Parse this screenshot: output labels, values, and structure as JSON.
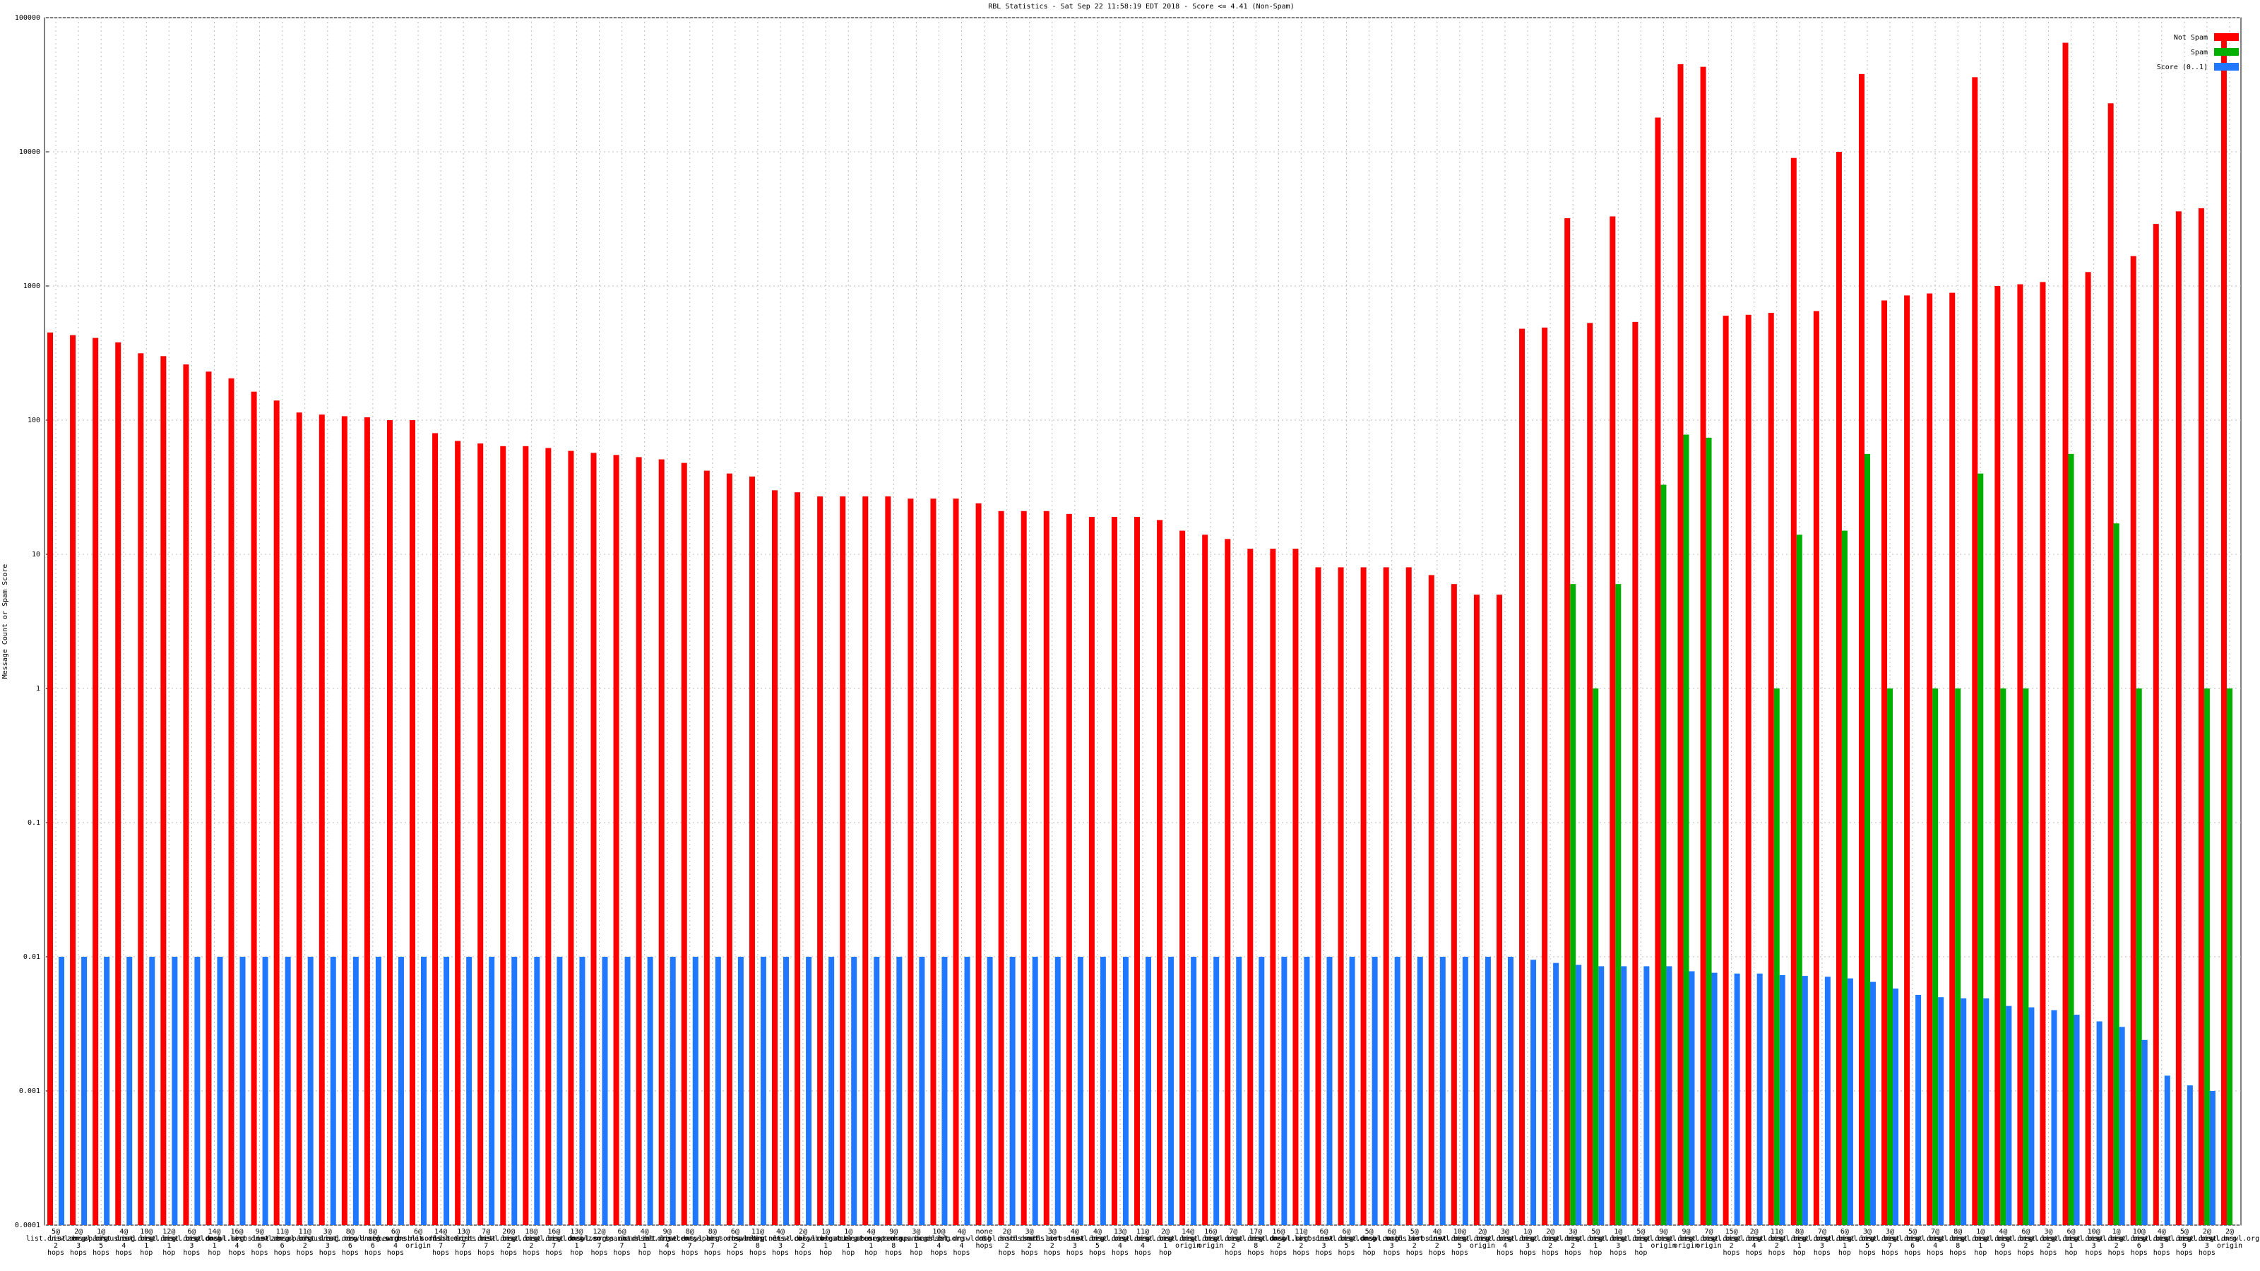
{
  "chart_data": {
    "type": "bar",
    "log_scale": true,
    "grid": true,
    "legend_position": "top-right",
    "title": "RBL Statistics - Sat Sep 22 11:58:19 EDT 2018 - Score <= 4.41 (Non-Spam)",
    "y_label": "Message Count or Spam Score",
    "ylim": [
      0.0001,
      100000
    ],
    "yticks": [
      0.0001,
      0.001,
      0.01,
      0.1,
      1,
      10,
      100,
      1000,
      10000,
      100000
    ],
    "categories": [
      "5@ list.dnswl.org 2 hops",
      "2@ list.dnswl.org 3 hops",
      "1@ zen.spamhaus.org 5 hops",
      "4@ list.dnswl.org 4 hops",
      "10@ list.dnswl.org 1 hop",
      "12@ list.dnswl.org 1 hop",
      "6@ list.dnswl.org 3 hops",
      "14@ list.dnswl.org 1 hop",
      "16@ dnsbl.sorbs.net 4 hops",
      "9@ list.dnswl.org 6 hops",
      "11@ list.dnswl.org 6 hops",
      "11@ zen.spamhaus.org 2 hops",
      "3@ list.dnswl.org 3 hops",
      "8@ list.dnswl.org 6 hops",
      "8@ ix.dnsbl.org 6 hops",
      "6@ zen.sorbs.net 4 hops",
      "6@ new.dnsbl.sorbs.net origin",
      "14@ ix.dnsbl.org 7 hops",
      "13@ list.sorbs.net 7 hops",
      "7@ list.dnswl.org 7 hops",
      "20@ list.dnswl.org 2 hops",
      "18@ list.dnswl.org 2 hops",
      "16@ list.dnswl.org 7 hops",
      "13@ list.dnswl.org 1 hop",
      "12@ dnsbl.sorbs.net 7 hops",
      "6@ zen.spamhaus.net 7 hops",
      "4@ ix.dnsbl.org 1 hop",
      "9@ list.dnswl.org 4 hops",
      "8@ list.dnswl.org 7 hops",
      "8@ recent.spam.sorbs.net 7 hops",
      "6@ list.dnswl.org 2 hops",
      "11@ spamcop.net 8 hops",
      "4@ list.dnswl.org 3 hops",
      "2@ list.dnswl.org 2 hops",
      "1@ cbl.abuseat.org 1 hop",
      "1@ cbl.abuseat.org 1 hop",
      "4@ cbl.abuseat.org 1 hop",
      "9@ zen.spamhaus.org 8 hops",
      "3@ zen.spamhaus.org 1 hop",
      "10@ ix.dnsbl.org 4 hops",
      "4@ list.dnswl.org 4 hops",
      "none 8 hops",
      "2@ dnsbl.sorbs.net 2 hops",
      "3@ dnsbl.sorbs.net 2 hops",
      "3@ dnsbl.sorbs.net 2 hops",
      "4@ list.dnswl.org 3 hops",
      "4@ list.dnswl.org 5 hops",
      "13@ list.dnswl.org 4 hops",
      "11@ list.dnswl.org 4 hops",
      "2@ list.dnswl.org 1 hop",
      "14@ list.dnswl.org origin",
      "16@ list.dnswl.org origin",
      "7@ list.dnswl.org 2 hops",
      "17@ list.dnswl.org 8 hops",
      "16@ list.dnswl.org 2 hops",
      "11@ dnsbl.sorbs.net 2 hops",
      "6@ list.dnswl.org 3 hops",
      "6@ list.dnswl.org 5 hops",
      "5@ list.dnswl.org 1 hop",
      "6@ dnsbl.sorbs.net 3 hops",
      "5@ dnsbl.sorbs.net 2 hops",
      "4@ list.dnswl.org 2 hops",
      "10@ list.dnswl.org 5 hops",
      "2@ list.dnswl.org origin",
      "3@ list.dnswl.org 4 hops",
      "1@ list.dnswl.org 3 hops",
      "2@ list.dnswl.org 2 hops",
      "3@ list.dnswl.org 2 hops",
      "5@ list.dnswl.org 1 hop",
      "1@ list.dnswl.org 3 hops",
      "5@ list.dnswl.org 1 hop",
      "9@ list.dnswl.org origin",
      "9@ list.dnswl.org origin",
      "7@ list.dnswl.org origin",
      "15@ list.dnswl.org 2 hops",
      "2@ list.dnswl.org 4 hops",
      "11@ list.dnswl.org 2 hops",
      "8@ list.dnswl.org 1 hop",
      "7@ list.dnswl.org 3 hops",
      "6@ list.dnswl.org 1 hop",
      "3@ list.dnswl.org 5 hops",
      "3@ list.dnswl.org 7 hops",
      "5@ list.dnswl.org 6 hops",
      "7@ list.dnswl.org 4 hops",
      "8@ list.dnswl.org 8 hops",
      "1@ list.dnswl.org 1 hop",
      "4@ list.dnswl.org 9 hops",
      "6@ list.dnswl.org 2 hops",
      "3@ list.dnswl.org 2 hops",
      "6@ list.dnswl.org 1 hop",
      "10@ list.dnswl.org 3 hops",
      "1@ list.dnswl.org 2 hops",
      "10@ list.dnswl.org 6 hops",
      "4@ list.dnswl.org 3 hops",
      "5@ list.dnswl.org 9 hops",
      "2@ list.dnswl.org 3 hops",
      "2@ list.dnswl.org origin"
    ],
    "series": [
      {
        "name": "Not Spam",
        "color": "#ff0000",
        "values": [
          450,
          430,
          410,
          380,
          315,
          300,
          260,
          230,
          205,
          163,
          140,
          114,
          110,
          107,
          105,
          100,
          100,
          80,
          70,
          67,
          64,
          64,
          62,
          59,
          57,
          55,
          53,
          51,
          48,
          42,
          40,
          38,
          30,
          29,
          27,
          27,
          27,
          27,
          26,
          26,
          26,
          24,
          21,
          21,
          21,
          20,
          19,
          19,
          19,
          18,
          15,
          14,
          13,
          11,
          11,
          11,
          8,
          8,
          8,
          8,
          8,
          7,
          6,
          5,
          5,
          480,
          490,
          3200,
          530,
          3300,
          540,
          18000,
          45000,
          43000,
          600,
          610,
          630,
          9000,
          650,
          10000,
          38000,
          780,
          850,
          880,
          890,
          36000,
          1000,
          1030,
          1070,
          65000,
          1270,
          23000,
          1670,
          2900,
          3600,
          3800,
          75000
        ]
      },
      {
        "name": "Spam",
        "color": "#00b000",
        "values": [
          null,
          null,
          null,
          null,
          null,
          null,
          null,
          null,
          null,
          null,
          null,
          null,
          null,
          null,
          null,
          null,
          null,
          null,
          null,
          null,
          null,
          null,
          null,
          null,
          null,
          null,
          null,
          null,
          null,
          null,
          null,
          null,
          null,
          null,
          null,
          null,
          null,
          null,
          null,
          null,
          null,
          null,
          null,
          null,
          null,
          null,
          null,
          null,
          null,
          null,
          null,
          null,
          null,
          null,
          null,
          null,
          null,
          null,
          null,
          null,
          null,
          null,
          null,
          null,
          null,
          null,
          null,
          6,
          1,
          6,
          null,
          33,
          78,
          74,
          null,
          null,
          1,
          14,
          null,
          15,
          56,
          1,
          null,
          1,
          1,
          40,
          1,
          1,
          null,
          56,
          null,
          17,
          1,
          null,
          null,
          1,
          1
        ]
      },
      {
        "name": "Score (0..1)",
        "color": "#1f78ff",
        "values": [
          0.01,
          0.01,
          0.01,
          0.01,
          0.01,
          0.01,
          0.01,
          0.01,
          0.01,
          0.01,
          0.01,
          0.01,
          0.01,
          0.01,
          0.01,
          0.01,
          0.01,
          0.01,
          0.01,
          0.01,
          0.01,
          0.01,
          0.01,
          0.01,
          0.01,
          0.01,
          0.01,
          0.01,
          0.01,
          0.01,
          0.01,
          0.01,
          0.01,
          0.01,
          0.01,
          0.01,
          0.01,
          0.01,
          0.01,
          0.01,
          0.01,
          0.01,
          0.01,
          0.01,
          0.01,
          0.01,
          0.01,
          0.01,
          0.01,
          0.01,
          0.01,
          0.01,
          0.01,
          0.01,
          0.01,
          0.01,
          0.01,
          0.01,
          0.01,
          0.01,
          0.01,
          0.01,
          0.01,
          0.01,
          0.01,
          0.0095,
          0.009,
          0.0087,
          0.0085,
          0.0085,
          0.0085,
          0.0085,
          0.0078,
          0.0076,
          0.0075,
          0.0075,
          0.0073,
          0.0072,
          0.0071,
          0.0069,
          0.0065,
          0.0058,
          0.0052,
          0.005,
          0.0049,
          0.0049,
          0.0043,
          0.0042,
          0.004,
          0.0037,
          0.0033,
          0.003,
          0.0024,
          0.0013,
          0.0011,
          0.001,
          null
        ]
      }
    ]
  }
}
